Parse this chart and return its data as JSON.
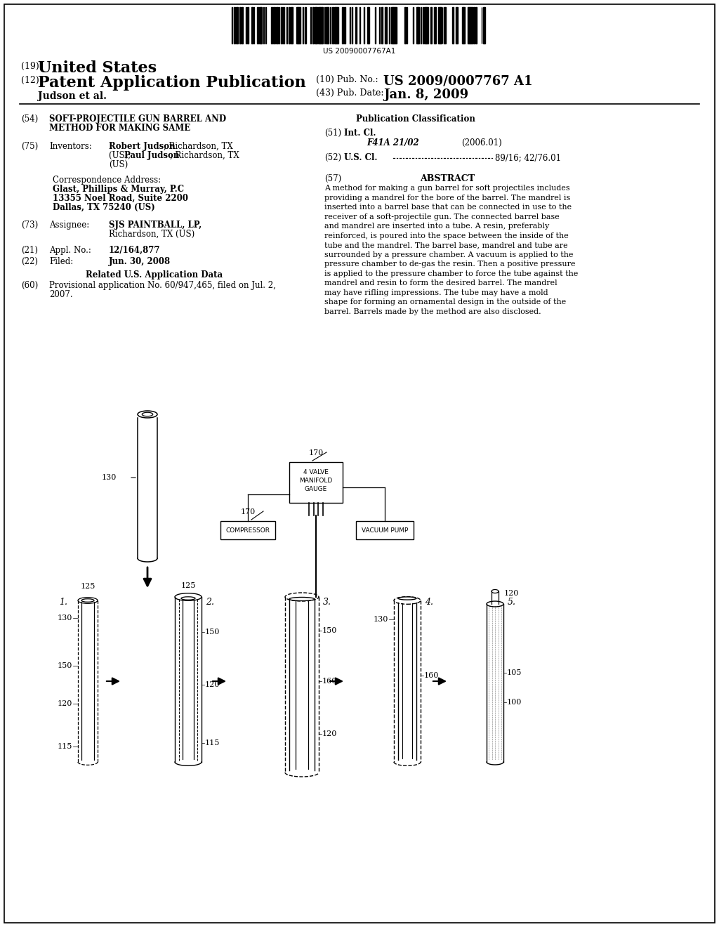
{
  "bg_color": "#ffffff",
  "barcode_text": "US 20090007767A1",
  "header_19": "(19)",
  "header_19_text": "United States",
  "header_12": "(12)",
  "header_12_text": "Patent Application Publication",
  "pub_no_label": "(10) Pub. No.:",
  "pub_no_value": "US 2009/0007767 A1",
  "pub_date_label": "(43) Pub. Date:",
  "pub_date_value": "Jan. 8, 2009",
  "author": "Judson et al.",
  "field54_label": "(54)",
  "field54_text_1": "SOFT-PROJECTILE GUN BARREL AND",
  "field54_text_2": "METHOD FOR MAKING SAME",
  "field75_label": "(75)",
  "field75_key": "Inventors:",
  "field75_v1": "Robert Judson",
  "field75_v1b": ", Richardson, TX",
  "field75_v2": "(US); ",
  "field75_v2b": "Paul Judson",
  "field75_v2c": ", Richardson, TX",
  "field75_v3": "(US)",
  "corr_label": "Correspondence Address:",
  "corr_line1": "Glast, Phillips & Murray, P.C",
  "corr_line2": "13355 Noel Road, Suite 2200",
  "corr_line3": "Dallas, TX 75240 (US)",
  "field73_label": "(73)",
  "field73_key": "Assignee:",
  "field73_v1": "SJS PAINTBALL, LP,",
  "field73_v2": "Richardson, TX (US)",
  "field21_label": "(21)",
  "field21_key": "Appl. No.:",
  "field21_value": "12/164,877",
  "field22_label": "(22)",
  "field22_key": "Filed:",
  "field22_value": "Jun. 30, 2008",
  "related_title": "Related U.S. Application Data",
  "field60_label": "(60)",
  "field60_v1": "Provisional application No. 60/947,465, filed on Jul. 2,",
  "field60_v2": "2007.",
  "pub_class_title": "Publication Classification",
  "field51_label": "(51)",
  "field51_key": "Int. Cl.",
  "field51_class": "F41A 21/02",
  "field51_year": "(2006.01)",
  "field52_label": "(52)",
  "field52_key": "U.S. Cl.",
  "field52_dots": ".................................",
  "field52_value": "89/16; 42/76.01",
  "abstract_num": "(57)",
  "abstract_title": "ABSTRACT",
  "abstract_text": "A method for making a gun barrel for soft projectiles includes\nproviding a mandrel for the bore of the barrel. The mandrel is\ninserted into a barrel base that can be connected in use to the\nreceiver of a soft-projectile gun. The connected barrel base\nand mandrel are inserted into a tube. A resin, preferably\nreinforced, is poured into the space between the inside of the\ntube and the mandrel. The barrel base, mandrel and tube are\nsurrounded by a pressure chamber. A vacuum is applied to the\npressure chamber to de-gas the resin. Then a positive pressure\nis applied to the pressure chamber to force the tube against the\nmandrel and resin to form the desired barrel. The mandrel\nmay have rifling impressions. The tube may have a mold\nshape for forming an ornamental design in the outside of the\nbarrel. Barrels made by the method are also disclosed."
}
